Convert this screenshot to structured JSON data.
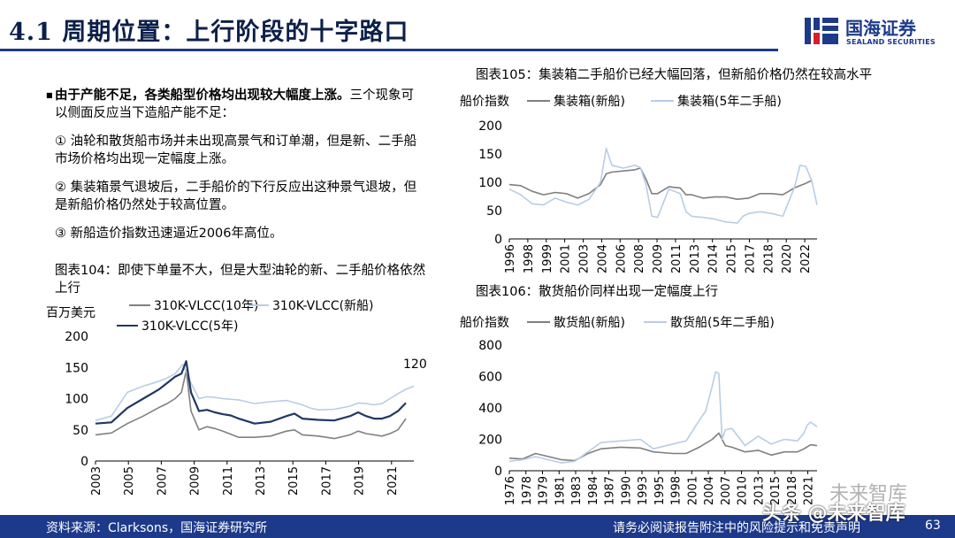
{
  "page": {
    "title": "4.1 周期位置：上行阶段的十字路口",
    "logo_cn": "国海证券",
    "logo_en": "SEALAND SECURITIES",
    "bullet_lead": "由于产能不足，各类船型价格均出现较大幅度上涨。",
    "bullet_rest": "三个现象可以侧面反应当下造船产能不足：",
    "point1": "① 油轮和散货船市场并未出现高景气和订单潮，但是新、二手船市场价格均出现一定幅度上涨。",
    "point2": "② 集装箱景气退坡后，二手船价的下行反应出这种景气退坡，但是新船价格仍然处于较高位置。",
    "point3": "③ 新船造价指数迅速逼近2006年高位。",
    "footer_source": "资料来源：Clarksons，国海证券研究所",
    "footer_disclaimer": "请务必阅读报告附注中的风险提示和免责声明",
    "page_number": "63",
    "watermark1": "未来智库",
    "watermark2": "头条 @未来智库"
  },
  "chart_data": [
    {
      "id": "vlcc",
      "caption": "图表104：即使下单量不大，但是大型油轮的新、二手船价格依然上行",
      "type": "line",
      "ylabel": "百万美元",
      "ylim": [
        0,
        200
      ],
      "yticks": [
        0,
        50,
        100,
        150,
        200
      ],
      "xlim": [
        2003,
        2023
      ],
      "xticks": [
        "2003",
        "2005",
        "2007",
        "2009",
        "2011",
        "2013",
        "2015",
        "2017",
        "2019",
        "2021"
      ],
      "annotation": "120",
      "legend_placement": "top",
      "colors": {
        "10y": "#808080",
        "new": "#b8cde6",
        "5y": "#1f3864"
      },
      "series": [
        {
          "name": "310K-VLCC(10年)",
          "key": "10y",
          "x": [
            2003,
            2004,
            2005,
            2006,
            2007,
            2007.5,
            2008,
            2008.4,
            2008.7,
            2009,
            2009.5,
            2010,
            2010.5,
            2011,
            2011.5,
            2012,
            2013,
            2014,
            2015,
            2015.5,
            2016,
            2017,
            2018,
            2019,
            2019.5,
            2020,
            2021,
            2021.5,
            2022,
            2022.5
          ],
          "y": [
            42,
            45,
            60,
            72,
            86,
            92,
            100,
            110,
            145,
            80,
            50,
            55,
            52,
            48,
            43,
            38,
            38,
            40,
            48,
            50,
            42,
            40,
            36,
            42,
            48,
            44,
            40,
            44,
            50,
            68
          ]
        },
        {
          "name": "310K-VLCC(新船)",
          "key": "new",
          "x": [
            2003,
            2004,
            2005,
            2006,
            2007,
            2007.5,
            2008,
            2008.5,
            2009,
            2009.5,
            2010,
            2010.5,
            2011,
            2012,
            2013,
            2014,
            2015,
            2016,
            2016.5,
            2017,
            2018,
            2019,
            2019.5,
            2020,
            2020.5,
            2021,
            2021.5,
            2022,
            2022.5,
            2023
          ],
          "y": [
            65,
            72,
            110,
            120,
            128,
            133,
            140,
            155,
            125,
            100,
            103,
            102,
            100,
            98,
            92,
            95,
            97,
            90,
            85,
            82,
            83,
            88,
            93,
            92,
            90,
            92,
            100,
            108,
            115,
            120
          ]
        },
        {
          "name": "310K-VLCC(5年)",
          "key": "5y",
          "x": [
            2003,
            2004,
            2005,
            2006,
            2007,
            2007.5,
            2008,
            2008.4,
            2008.7,
            2009,
            2009.5,
            2010,
            2010.5,
            2011,
            2011.5,
            2012,
            2013,
            2014,
            2015,
            2015.5,
            2016,
            2017,
            2018,
            2019,
            2019.5,
            2020,
            2020.5,
            2021,
            2021.5,
            2022,
            2022.5
          ],
          "y": [
            60,
            62,
            85,
            100,
            115,
            125,
            135,
            140,
            160,
            110,
            80,
            82,
            78,
            75,
            73,
            68,
            60,
            63,
            72,
            76,
            68,
            66,
            65,
            72,
            78,
            72,
            68,
            68,
            72,
            80,
            93
          ]
        }
      ]
    },
    {
      "id": "container",
      "caption": "图表105：集装箱二手船价已经大幅回落，但新船价格仍然在较高水平",
      "type": "line",
      "ylabel": "船价指数",
      "ylim": [
        0,
        200
      ],
      "yticks": [
        0,
        50,
        100,
        150,
        200
      ],
      "xlim": [
        1996,
        2023
      ],
      "xticks": [
        "1996",
        "1998",
        "1999",
        "2001",
        "2003",
        "2004",
        "2006",
        "2008",
        "2009",
        "2011",
        "2013",
        "2014",
        "2015",
        "2017",
        "2018",
        "2020",
        "2022"
      ],
      "legend_placement": "top",
      "colors": {
        "new": "#7f7f7f",
        "used": "#b8cde6"
      },
      "series": [
        {
          "name": "集装箱(新船)",
          "key": "new",
          "x": [
            1996,
            1997,
            1998,
            1999,
            2000,
            2001,
            2002,
            2003,
            2004,
            2004.5,
            2005,
            2006,
            2007,
            2007.5,
            2008,
            2008.5,
            2009,
            2010,
            2011,
            2011.5,
            2012,
            2013,
            2014,
            2015,
            2016,
            2017,
            2018,
            2019,
            2020,
            2021,
            2022,
            2022.5
          ],
          "y": [
            96,
            94,
            84,
            78,
            82,
            80,
            72,
            80,
            96,
            115,
            118,
            120,
            122,
            125,
            105,
            80,
            80,
            92,
            90,
            78,
            78,
            72,
            74,
            74,
            70,
            72,
            80,
            80,
            78,
            90,
            98,
            103
          ]
        },
        {
          "name": "集装箱(5年二手船)",
          "key": "used",
          "x": [
            1996,
            1997,
            1998,
            1999,
            2000,
            2001,
            2002,
            2003,
            2004,
            2004.5,
            2005,
            2006,
            2007,
            2007.5,
            2008,
            2008.5,
            2009,
            2010,
            2011,
            2011.5,
            2012,
            2013,
            2014,
            2015,
            2016,
            2016.5,
            2017,
            2018,
            2019,
            2020,
            2021,
            2021.5,
            2022,
            2022.5,
            2023
          ],
          "y": [
            88,
            78,
            62,
            60,
            72,
            65,
            60,
            70,
            100,
            160,
            130,
            125,
            130,
            126,
            95,
            40,
            38,
            88,
            80,
            48,
            40,
            38,
            35,
            30,
            28,
            40,
            45,
            48,
            45,
            40,
            90,
            130,
            128,
            105,
            60
          ]
        }
      ]
    },
    {
      "id": "bulk",
      "caption": "图表106：散货船价同样出现一定幅度上行",
      "type": "line",
      "ylabel": "船价指数",
      "ylim": [
        0,
        800
      ],
      "yticks": [
        0,
        200,
        400,
        600,
        800
      ],
      "xlim": [
        1976,
        2023
      ],
      "xticks": [
        "1976",
        "1978",
        "1979",
        "1981",
        "1983",
        "1984",
        "1987",
        "1990",
        "1993",
        "1995",
        "1998",
        "2001",
        "2004",
        "2007",
        "2010",
        "2013",
        "2015",
        "2018",
        "2021"
      ],
      "legend_placement": "top",
      "colors": {
        "new": "#7f7f7f",
        "used": "#b8cde6"
      },
      "series": [
        {
          "name": "散货船(新船)",
          "key": "new",
          "x": [
            1976,
            1978,
            1980,
            1982,
            1984,
            1986,
            1988,
            1990,
            1993,
            1996,
            1998,
            2001,
            2003,
            2005,
            2007,
            2008,
            2009,
            2010,
            2012,
            2014,
            2016,
            2018,
            2020,
            2021,
            2022,
            2023
          ],
          "y": [
            80,
            75,
            110,
            90,
            70,
            65,
            110,
            140,
            150,
            145,
            120,
            110,
            110,
            150,
            200,
            240,
            160,
            150,
            120,
            130,
            100,
            120,
            120,
            140,
            165,
            160
          ]
        },
        {
          "name": "散货船(5年二手船)",
          "key": "used",
          "x": [
            1976,
            1978,
            1980,
            1982,
            1984,
            1986,
            1988,
            1990,
            1993,
            1996,
            1998,
            2001,
            2003,
            2005,
            2006,
            2007,
            2007.5,
            2008,
            2008.5,
            2009,
            2010,
            2012,
            2014,
            2016,
            2018,
            2020,
            2021,
            2021.5,
            2022,
            2023
          ],
          "y": [
            60,
            70,
            90,
            70,
            50,
            60,
            120,
            180,
            190,
            200,
            140,
            170,
            190,
            320,
            380,
            540,
            630,
            620,
            200,
            260,
            270,
            160,
            220,
            170,
            200,
            190,
            240,
            290,
            310,
            280
          ]
        }
      ]
    }
  ]
}
